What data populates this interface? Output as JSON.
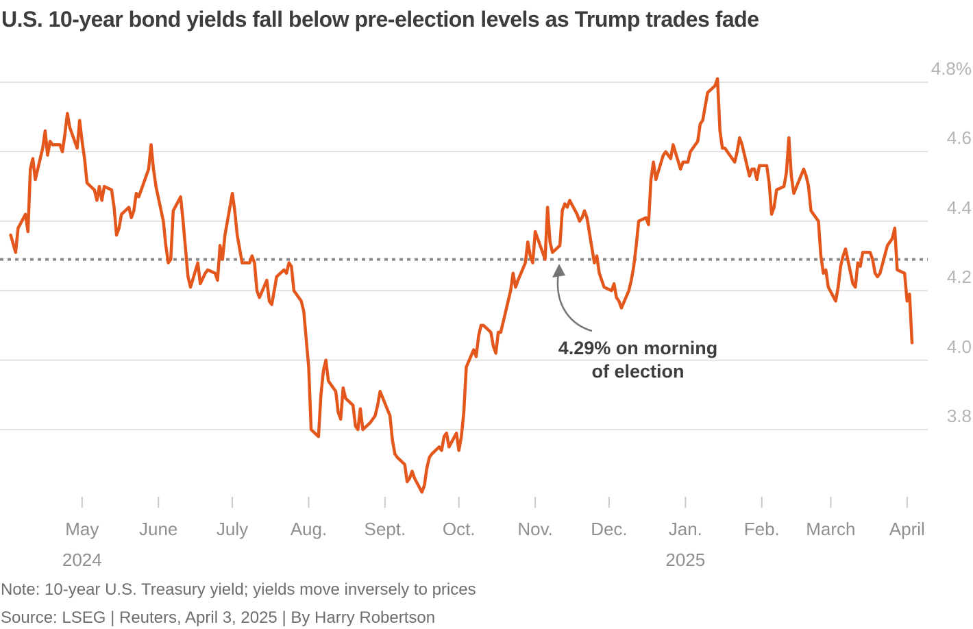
{
  "title": "U.S. 10-year bond yields fall below pre-election levels as Trump trades fade",
  "annotation": {
    "line1": "4.29% on morning",
    "line2": "of election"
  },
  "note": "Note: 10-year U.S. Treasury yield; yields move inversely to prices",
  "source": "Source: LSEG | Reuters, April 3, 2025 | By Harry Robertson",
  "colors": {
    "line": "#e4571c",
    "grid": "#d9d9d9",
    "reference_dotted": "#8a8a8a",
    "y_label": "#b4b4b4",
    "x_label": "#8f8f8f",
    "tick": "#c9c9c9",
    "title": "#3d3d3d",
    "annotation": "#3d3d3d",
    "arrow": "#757575",
    "note": "#6e6e6e"
  },
  "chart_data": {
    "type": "line",
    "title": "U.S. 10-year bond yields fall below pre-election levels as Trump trades fade",
    "ylabel": "",
    "xlabel": "",
    "ylim": [
      3.55,
      4.85
    ],
    "grid": "horizontal",
    "legend_position": "none",
    "y_ticks": [
      {
        "value": 4.8,
        "label": "4.8%"
      },
      {
        "value": 4.6,
        "label": "4.6"
      },
      {
        "value": 4.4,
        "label": "4.4"
      },
      {
        "value": 4.2,
        "label": "4.2"
      },
      {
        "value": 4.0,
        "label": "4.0"
      },
      {
        "value": 3.8,
        "label": "3.8"
      }
    ],
    "x_ticks": [
      {
        "date": "2024-05-01",
        "label": "May",
        "year": "2024"
      },
      {
        "date": "2024-06-01",
        "label": "June",
        "year": ""
      },
      {
        "date": "2024-07-01",
        "label": "July",
        "year": ""
      },
      {
        "date": "2024-08-01",
        "label": "Aug.",
        "year": ""
      },
      {
        "date": "2024-09-01",
        "label": "Sept.",
        "year": ""
      },
      {
        "date": "2024-10-01",
        "label": "Oct.",
        "year": ""
      },
      {
        "date": "2024-11-01",
        "label": "Nov.",
        "year": ""
      },
      {
        "date": "2024-12-01",
        "label": "Dec.",
        "year": ""
      },
      {
        "date": "2025-01-01",
        "label": "Jan.",
        "year": "2025"
      },
      {
        "date": "2025-02-01",
        "label": "Feb.",
        "year": ""
      },
      {
        "date": "2025-03-01",
        "label": "March",
        "year": ""
      },
      {
        "date": "2025-04-01",
        "label": "April",
        "year": ""
      }
    ],
    "reference_line": {
      "value": 4.29,
      "style": "dotted",
      "label": "4.29% on morning of election"
    },
    "series": [
      {
        "name": "U.S. 10-year Treasury yield (%)",
        "points": [
          [
            "2024-04-02",
            4.36
          ],
          [
            "2024-04-04",
            4.31
          ],
          [
            "2024-04-05",
            4.38
          ],
          [
            "2024-04-08",
            4.42
          ],
          [
            "2024-04-09",
            4.37
          ],
          [
            "2024-04-10",
            4.55
          ],
          [
            "2024-04-11",
            4.58
          ],
          [
            "2024-04-12",
            4.52
          ],
          [
            "2024-04-15",
            4.61
          ],
          [
            "2024-04-16",
            4.66
          ],
          [
            "2024-04-17",
            4.59
          ],
          [
            "2024-04-18",
            4.63
          ],
          [
            "2024-04-19",
            4.62
          ],
          [
            "2024-04-22",
            4.62
          ],
          [
            "2024-04-23",
            4.6
          ],
          [
            "2024-04-24",
            4.65
          ],
          [
            "2024-04-25",
            4.71
          ],
          [
            "2024-04-26",
            4.67
          ],
          [
            "2024-04-29",
            4.61
          ],
          [
            "2024-04-30",
            4.69
          ],
          [
            "2024-05-01",
            4.63
          ],
          [
            "2024-05-02",
            4.58
          ],
          [
            "2024-05-03",
            4.51
          ],
          [
            "2024-05-06",
            4.49
          ],
          [
            "2024-05-07",
            4.46
          ],
          [
            "2024-05-08",
            4.5
          ],
          [
            "2024-05-09",
            4.46
          ],
          [
            "2024-05-10",
            4.5
          ],
          [
            "2024-05-13",
            4.49
          ],
          [
            "2024-05-14",
            4.44
          ],
          [
            "2024-05-15",
            4.36
          ],
          [
            "2024-05-16",
            4.38
          ],
          [
            "2024-05-17",
            4.42
          ],
          [
            "2024-05-20",
            4.44
          ],
          [
            "2024-05-21",
            4.41
          ],
          [
            "2024-05-22",
            4.43
          ],
          [
            "2024-05-23",
            4.48
          ],
          [
            "2024-05-24",
            4.47
          ],
          [
            "2024-05-28",
            4.55
          ],
          [
            "2024-05-29",
            4.62
          ],
          [
            "2024-05-30",
            4.55
          ],
          [
            "2024-05-31",
            4.5
          ],
          [
            "2024-06-03",
            4.4
          ],
          [
            "2024-06-04",
            4.33
          ],
          [
            "2024-06-05",
            4.28
          ],
          [
            "2024-06-06",
            4.29
          ],
          [
            "2024-06-07",
            4.43
          ],
          [
            "2024-06-10",
            4.47
          ],
          [
            "2024-06-11",
            4.4
          ],
          [
            "2024-06-12",
            4.32
          ],
          [
            "2024-06-13",
            4.24
          ],
          [
            "2024-06-14",
            4.21
          ],
          [
            "2024-06-17",
            4.28
          ],
          [
            "2024-06-18",
            4.22
          ],
          [
            "2024-06-20",
            4.25
          ],
          [
            "2024-06-21",
            4.26
          ],
          [
            "2024-06-24",
            4.25
          ],
          [
            "2024-06-25",
            4.23
          ],
          [
            "2024-06-26",
            4.33
          ],
          [
            "2024-06-27",
            4.29
          ],
          [
            "2024-06-28",
            4.36
          ],
          [
            "2024-07-01",
            4.48
          ],
          [
            "2024-07-02",
            4.43
          ],
          [
            "2024-07-03",
            4.36
          ],
          [
            "2024-07-05",
            4.28
          ],
          [
            "2024-07-08",
            4.28
          ],
          [
            "2024-07-09",
            4.3
          ],
          [
            "2024-07-10",
            4.28
          ],
          [
            "2024-07-11",
            4.2
          ],
          [
            "2024-07-12",
            4.18
          ],
          [
            "2024-07-15",
            4.23
          ],
          [
            "2024-07-16",
            4.17
          ],
          [
            "2024-07-17",
            4.16
          ],
          [
            "2024-07-18",
            4.2
          ],
          [
            "2024-07-19",
            4.24
          ],
          [
            "2024-07-22",
            4.26
          ],
          [
            "2024-07-23",
            4.25
          ],
          [
            "2024-07-24",
            4.28
          ],
          [
            "2024-07-25",
            4.27
          ],
          [
            "2024-07-26",
            4.2
          ],
          [
            "2024-07-29",
            4.17
          ],
          [
            "2024-07-30",
            4.14
          ],
          [
            "2024-07-31",
            4.06
          ],
          [
            "2024-08-01",
            3.98
          ],
          [
            "2024-08-02",
            3.8
          ],
          [
            "2024-08-05",
            3.78
          ],
          [
            "2024-08-06",
            3.9
          ],
          [
            "2024-08-07",
            3.97
          ],
          [
            "2024-08-08",
            4.0
          ],
          [
            "2024-08-09",
            3.94
          ],
          [
            "2024-08-12",
            3.91
          ],
          [
            "2024-08-13",
            3.85
          ],
          [
            "2024-08-14",
            3.83
          ],
          [
            "2024-08-15",
            3.92
          ],
          [
            "2024-08-16",
            3.89
          ],
          [
            "2024-08-19",
            3.87
          ],
          [
            "2024-08-20",
            3.81
          ],
          [
            "2024-08-21",
            3.8
          ],
          [
            "2024-08-22",
            3.86
          ],
          [
            "2024-08-23",
            3.8
          ],
          [
            "2024-08-26",
            3.82
          ],
          [
            "2024-08-27",
            3.83
          ],
          [
            "2024-08-28",
            3.84
          ],
          [
            "2024-08-29",
            3.87
          ],
          [
            "2024-08-30",
            3.91
          ],
          [
            "2024-09-03",
            3.84
          ],
          [
            "2024-09-04",
            3.77
          ],
          [
            "2024-09-05",
            3.73
          ],
          [
            "2024-09-06",
            3.72
          ],
          [
            "2024-09-09",
            3.7
          ],
          [
            "2024-09-10",
            3.65
          ],
          [
            "2024-09-11",
            3.66
          ],
          [
            "2024-09-12",
            3.68
          ],
          [
            "2024-09-13",
            3.66
          ],
          [
            "2024-09-16",
            3.62
          ],
          [
            "2024-09-17",
            3.64
          ],
          [
            "2024-09-18",
            3.69
          ],
          [
            "2024-09-19",
            3.72
          ],
          [
            "2024-09-20",
            3.73
          ],
          [
            "2024-09-23",
            3.75
          ],
          [
            "2024-09-24",
            3.74
          ],
          [
            "2024-09-25",
            3.78
          ],
          [
            "2024-09-26",
            3.79
          ],
          [
            "2024-09-27",
            3.75
          ],
          [
            "2024-09-30",
            3.79
          ],
          [
            "2024-10-01",
            3.74
          ],
          [
            "2024-10-02",
            3.78
          ],
          [
            "2024-10-03",
            3.85
          ],
          [
            "2024-10-04",
            3.98
          ],
          [
            "2024-10-07",
            4.03
          ],
          [
            "2024-10-08",
            4.01
          ],
          [
            "2024-10-09",
            4.07
          ],
          [
            "2024-10-10",
            4.1
          ],
          [
            "2024-10-11",
            4.1
          ],
          [
            "2024-10-14",
            4.08
          ],
          [
            "2024-10-15",
            4.04
          ],
          [
            "2024-10-16",
            4.02
          ],
          [
            "2024-10-17",
            4.08
          ],
          [
            "2024-10-18",
            4.08
          ],
          [
            "2024-10-21",
            4.17
          ],
          [
            "2024-10-22",
            4.2
          ],
          [
            "2024-10-23",
            4.25
          ],
          [
            "2024-10-24",
            4.21
          ],
          [
            "2024-10-25",
            4.23
          ],
          [
            "2024-10-28",
            4.28
          ],
          [
            "2024-10-29",
            4.34
          ],
          [
            "2024-10-30",
            4.3
          ],
          [
            "2024-10-31",
            4.28
          ],
          [
            "2024-11-01",
            4.37
          ],
          [
            "2024-11-04",
            4.31
          ],
          [
            "2024-11-05",
            4.29
          ],
          [
            "2024-11-06",
            4.44
          ],
          [
            "2024-11-07",
            4.34
          ],
          [
            "2024-11-08",
            4.31
          ],
          [
            "2024-11-11",
            4.33
          ],
          [
            "2024-11-12",
            4.43
          ],
          [
            "2024-11-13",
            4.45
          ],
          [
            "2024-11-14",
            4.44
          ],
          [
            "2024-11-15",
            4.46
          ],
          [
            "2024-11-18",
            4.42
          ],
          [
            "2024-11-19",
            4.4
          ],
          [
            "2024-11-20",
            4.41
          ],
          [
            "2024-11-21",
            4.43
          ],
          [
            "2024-11-22",
            4.41
          ],
          [
            "2024-11-25",
            4.28
          ],
          [
            "2024-11-26",
            4.3
          ],
          [
            "2024-11-27",
            4.25
          ],
          [
            "2024-11-29",
            4.21
          ],
          [
            "2024-12-02",
            4.2
          ],
          [
            "2024-12-03",
            4.22
          ],
          [
            "2024-12-04",
            4.18
          ],
          [
            "2024-12-05",
            4.17
          ],
          [
            "2024-12-06",
            4.15
          ],
          [
            "2024-12-09",
            4.2
          ],
          [
            "2024-12-10",
            4.23
          ],
          [
            "2024-12-11",
            4.27
          ],
          [
            "2024-12-12",
            4.33
          ],
          [
            "2024-12-13",
            4.4
          ],
          [
            "2024-12-16",
            4.41
          ],
          [
            "2024-12-17",
            4.39
          ],
          [
            "2024-12-18",
            4.52
          ],
          [
            "2024-12-19",
            4.57
          ],
          [
            "2024-12-20",
            4.52
          ],
          [
            "2024-12-23",
            4.59
          ],
          [
            "2024-12-24",
            4.6
          ],
          [
            "2024-12-26",
            4.58
          ],
          [
            "2024-12-27",
            4.62
          ],
          [
            "2024-12-30",
            4.55
          ],
          [
            "2024-12-31",
            4.57
          ],
          [
            "2025-01-02",
            4.57
          ],
          [
            "2025-01-03",
            4.6
          ],
          [
            "2025-01-06",
            4.63
          ],
          [
            "2025-01-07",
            4.68
          ],
          [
            "2025-01-08",
            4.69
          ],
          [
            "2025-01-10",
            4.77
          ],
          [
            "2025-01-13",
            4.79
          ],
          [
            "2025-01-14",
            4.81
          ],
          [
            "2025-01-15",
            4.66
          ],
          [
            "2025-01-16",
            4.61
          ],
          [
            "2025-01-17",
            4.61
          ],
          [
            "2025-01-21",
            4.57
          ],
          [
            "2025-01-22",
            4.6
          ],
          [
            "2025-01-23",
            4.64
          ],
          [
            "2025-01-24",
            4.62
          ],
          [
            "2025-01-27",
            4.53
          ],
          [
            "2025-01-28",
            4.55
          ],
          [
            "2025-01-29",
            4.55
          ],
          [
            "2025-01-30",
            4.52
          ],
          [
            "2025-01-31",
            4.56
          ],
          [
            "2025-02-03",
            4.56
          ],
          [
            "2025-02-04",
            4.51
          ],
          [
            "2025-02-05",
            4.42
          ],
          [
            "2025-02-06",
            4.44
          ],
          [
            "2025-02-07",
            4.49
          ],
          [
            "2025-02-10",
            4.5
          ],
          [
            "2025-02-11",
            4.54
          ],
          [
            "2025-02-12",
            4.64
          ],
          [
            "2025-02-13",
            4.53
          ],
          [
            "2025-02-14",
            4.48
          ],
          [
            "2025-02-18",
            4.55
          ],
          [
            "2025-02-19",
            4.53
          ],
          [
            "2025-02-20",
            4.5
          ],
          [
            "2025-02-21",
            4.43
          ],
          [
            "2025-02-24",
            4.4
          ],
          [
            "2025-02-25",
            4.3
          ],
          [
            "2025-02-26",
            4.25
          ],
          [
            "2025-02-27",
            4.26
          ],
          [
            "2025-02-28",
            4.21
          ],
          [
            "2025-03-03",
            4.17
          ],
          [
            "2025-03-04",
            4.21
          ],
          [
            "2025-03-05",
            4.27
          ],
          [
            "2025-03-06",
            4.3
          ],
          [
            "2025-03-07",
            4.32
          ],
          [
            "2025-03-10",
            4.22
          ],
          [
            "2025-03-11",
            4.21
          ],
          [
            "2025-03-12",
            4.28
          ],
          [
            "2025-03-13",
            4.27
          ],
          [
            "2025-03-14",
            4.31
          ],
          [
            "2025-03-17",
            4.31
          ],
          [
            "2025-03-18",
            4.29
          ],
          [
            "2025-03-19",
            4.25
          ],
          [
            "2025-03-20",
            4.24
          ],
          [
            "2025-03-21",
            4.25
          ],
          [
            "2025-03-24",
            4.33
          ],
          [
            "2025-03-25",
            4.34
          ],
          [
            "2025-03-26",
            4.35
          ],
          [
            "2025-03-27",
            4.38
          ],
          [
            "2025-03-28",
            4.26
          ],
          [
            "2025-03-31",
            4.25
          ],
          [
            "2025-04-01",
            4.17
          ],
          [
            "2025-04-02",
            4.19
          ],
          [
            "2025-04-03",
            4.05
          ]
        ]
      }
    ]
  }
}
